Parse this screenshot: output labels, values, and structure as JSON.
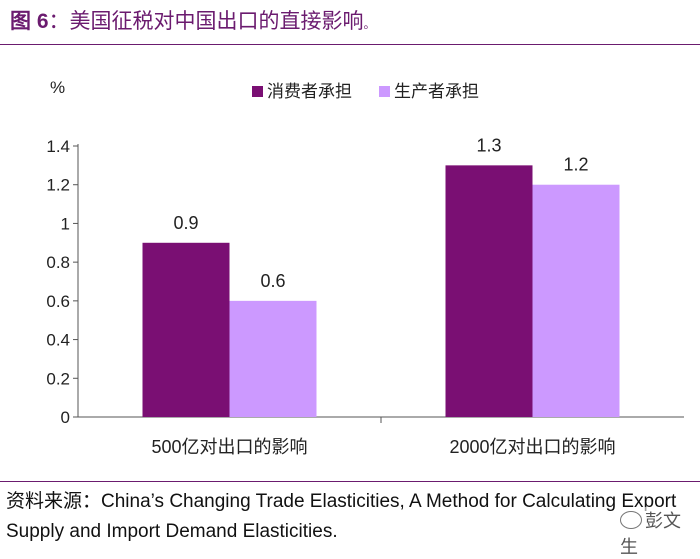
{
  "figure": {
    "label": "图 6",
    "title": "：美国征税对中国出口的直接影响",
    "title_mark": "。",
    "source_label": "资料来源：",
    "source_text": "China’s Changing Trade Elasticities, A Method for Calculating Export Supply and Import Demand Elasticities.",
    "watermark": "彭文生"
  },
  "chart_data": {
    "type": "bar",
    "unit": "%",
    "categories": [
      "500亿对出口的影响",
      "2000亿对出口的影响"
    ],
    "series": [
      {
        "name": "消费者承担",
        "values": [
          0.9,
          1.3
        ],
        "labels": [
          "0.9",
          "1.3"
        ],
        "color": "#7a0f73"
      },
      {
        "name": "生产者承担",
        "values": [
          0.6,
          1.2
        ],
        "labels": [
          "0.6",
          "1.2"
        ],
        "color": "#cc99ff"
      }
    ],
    "yticks": [
      0,
      0.2,
      0.4,
      0.6,
      0.8,
      1,
      1.2,
      1.4
    ],
    "ytick_labels": [
      "0",
      "0.2",
      "0.4",
      "0.6",
      "0.8",
      "1",
      "1.2",
      "1.4"
    ],
    "ylim": [
      0,
      1.4
    ],
    "legend_position": "top",
    "grid": false
  }
}
